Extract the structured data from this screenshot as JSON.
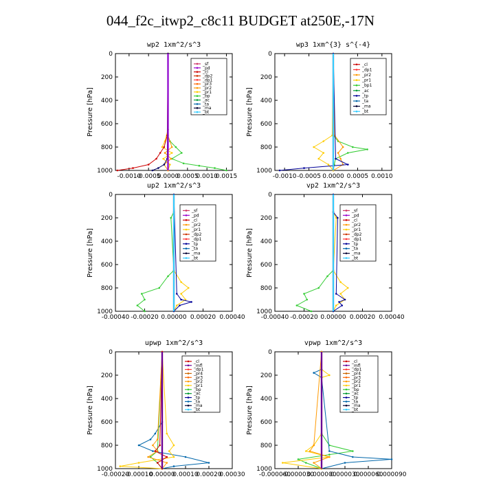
{
  "page": {
    "title": "044_f2c_itwp2_c8c11  BUDGET at250E,-17N"
  },
  "chart_data": [
    {
      "type": "line",
      "title": "wp2  1xm^2/s^3",
      "ylabel": "Pressure [hPa]",
      "xlim": [
        -0.00135,
        0.00165
      ],
      "ylim": [
        1000,
        0
      ],
      "xticks": [
        -0.001,
        -0.0005,
        0.0,
        0.0005,
        0.001,
        0.0015
      ],
      "xtick_labels": [
        "-0.0010",
        "-0.0005",
        "0.0000",
        "0.0005",
        "0.0010",
        "0.0015"
      ],
      "yticks": [
        0,
        200,
        400,
        600,
        800,
        1000
      ],
      "ytick_labels": [
        "0",
        "200",
        "400",
        "600",
        "800",
        "1000"
      ],
      "legend": [
        "_sf",
        "_pd",
        "_cl",
        "_dp2",
        "_dp1",
        "_pr3",
        "_pr2",
        "_pr1",
        "_bp",
        "_ac",
        "_ta",
        "_ma",
        "_bt"
      ],
      "legend_placement": "top-right",
      "series": [
        {
          "name": "_bp",
          "color": "#33cc33",
          "y": [
            0,
            650,
            700,
            750,
            800,
            850,
            900,
            940,
            960,
            980,
            1000
          ],
          "x": [
            0,
            0,
            -2e-05,
            5e-05,
            0.0002,
            0.00035,
            0.0001,
            0.0004,
            0.0008,
            0.0012,
            0.0015
          ]
        },
        {
          "name": "_pr1",
          "color": "#ffcc00",
          "y": [
            0,
            650,
            750,
            800,
            850,
            900,
            950,
            1000
          ],
          "x": [
            0,
            0,
            -8e-05,
            -0.00015,
            0.0001,
            -0.00012,
            5e-05,
            0
          ]
        },
        {
          "name": "_pr2",
          "color": "#ff9900",
          "y": [
            0,
            700,
            800,
            850,
            900,
            950,
            1000
          ],
          "x": [
            0,
            0,
            0.0001,
            -8e-05,
            8e-05,
            -0.0001,
            0
          ]
        },
        {
          "name": "_dp2",
          "color": "#cc0000",
          "y": [
            0,
            700,
            800,
            850,
            900,
            950,
            980,
            1000
          ],
          "x": [
            0,
            -2e-05,
            -0.0001,
            -0.0002,
            -0.0003,
            -0.0005,
            -0.0009,
            -0.0013
          ]
        },
        {
          "name": "_ta",
          "color": "#000066",
          "y": [
            0,
            900,
            950,
            980,
            1000
          ],
          "x": [
            0,
            -2e-05,
            -0.0001,
            -0.00025,
            -0.0004
          ]
        },
        {
          "name": "_bt",
          "color": "#33ccff",
          "y": [
            0,
            1000
          ],
          "x": [
            0,
            0
          ]
        },
        {
          "name": "_pd",
          "color": "#9900cc",
          "y": [
            0,
            1000
          ],
          "x": [
            0,
            0
          ]
        }
      ]
    },
    {
      "type": "line",
      "title": "wp3  1xm^{3} s^{-4}",
      "ylabel": "Pressure [hPa]",
      "xlim": [
        -0.0012,
        0.0012
      ],
      "ylim": [
        1000,
        0
      ],
      "xticks": [
        -0.001,
        -0.0005,
        0.0,
        0.0005,
        0.001
      ],
      "xtick_labels": [
        "-0.0010",
        "-0.0005",
        "0.0000",
        "0.0005",
        "0.0010"
      ],
      "yticks": [
        0,
        200,
        400,
        600,
        800,
        1000
      ],
      "ytick_labels": [
        "0",
        "200",
        "400",
        "600",
        "800",
        "1000"
      ],
      "legend": [
        "_cl",
        "_dp1",
        "_pr2",
        "_pr1",
        "_bp1",
        "_ac",
        "_tp",
        "_ta",
        "_ma",
        "_bt"
      ],
      "legend_placement": "top-right",
      "series": [
        {
          "name": "_ac",
          "color": "#33cc33",
          "y": [
            0,
            700,
            750,
            800,
            820,
            850,
            900,
            950,
            1000
          ],
          "x": [
            0,
            0,
            0.0001,
            0.0004,
            0.0007,
            0.0003,
            5e-05,
            2e-05,
            0
          ]
        },
        {
          "name": "_pr1",
          "color": "#ffcc00",
          "y": [
            0,
            700,
            750,
            800,
            850,
            900,
            950,
            1000
          ],
          "x": [
            0,
            -2e-05,
            -0.0002,
            -0.0004,
            -0.0002,
            -0.0003,
            -0.0001,
            0
          ]
        },
        {
          "name": "_pr2",
          "color": "#ff9900",
          "y": [
            0,
            700,
            800,
            850,
            900,
            950,
            1000
          ],
          "x": [
            0,
            3e-05,
            0.0002,
            0.0001,
            0.00015,
            0.0002,
            0
          ]
        },
        {
          "name": "_tp",
          "color": "#000099",
          "y": [
            0,
            900,
            950,
            980,
            1000
          ],
          "x": [
            0,
            5e-05,
            0.0003,
            -0.0006,
            -0.0011
          ]
        },
        {
          "name": "_cl",
          "color": "#cc0000",
          "y": [
            0,
            1000
          ],
          "x": [
            0,
            0
          ]
        },
        {
          "name": "_bt",
          "color": "#33ccff",
          "y": [
            0,
            1000
          ],
          "x": [
            0,
            0
          ]
        }
      ]
    },
    {
      "type": "line",
      "title": "up2  1xm^2/s^3",
      "ylabel": "Pressure [hPa]",
      "xlim": [
        -0.0004,
        0.0004
      ],
      "ylim": [
        1000,
        0
      ],
      "xticks": [
        -0.0004,
        -0.0002,
        0.0,
        0.0002,
        0.0004
      ],
      "xtick_labels": [
        "-0.00040",
        "-0.00020",
        "0.00000",
        "0.00020",
        "0.00040"
      ],
      "yticks": [
        0,
        200,
        400,
        600,
        800,
        1000
      ],
      "ytick_labels": [
        "0",
        "200",
        "400",
        "600",
        "800",
        "1000"
      ],
      "legend": [
        "_sf",
        "_pd",
        "_cl",
        "_pr2",
        "_pr1",
        "_dp2",
        "_dp1",
        "_tp",
        "_ta",
        "_ma",
        "_bt"
      ],
      "legend_placement": "top-right",
      "series": [
        {
          "name": "_dp1",
          "color": "#33cc33",
          "y": [
            0,
            150,
            200,
            650,
            700,
            800,
            850,
            900,
            950,
            1000
          ],
          "x": [
            0,
            0,
            -2e-05,
            0,
            -4e-05,
            -0.0001,
            -0.00022,
            -0.0002,
            -0.00025,
            -0.0002
          ]
        },
        {
          "name": "_pr1",
          "color": "#ffcc00",
          "y": [
            0,
            650,
            750,
            800,
            850,
            900,
            950,
            1000
          ],
          "x": [
            0,
            0,
            5e-05,
            0.0001,
            5e-05,
            8e-05,
            2e-05,
            0
          ]
        },
        {
          "name": "_tp",
          "color": "#000099",
          "y": [
            0,
            850,
            900,
            920,
            950,
            1000
          ],
          "x": [
            0,
            2e-05,
            5e-05,
            0.00012,
            4e-05,
            0
          ]
        },
        {
          "name": "_cl",
          "color": "#cc0000",
          "y": [
            0,
            1000
          ],
          "x": [
            0,
            0
          ]
        },
        {
          "name": "_bt",
          "color": "#33ccff",
          "y": [
            0,
            1000
          ],
          "x": [
            0,
            0
          ]
        }
      ]
    },
    {
      "type": "line",
      "title": "vp2  1xm^2/s^3",
      "ylabel": "Pressure [hPa]",
      "xlim": [
        -0.0004,
        0.0004
      ],
      "ylim": [
        1000,
        0
      ],
      "xticks": [
        -0.0004,
        -0.0002,
        0.0,
        0.0002,
        0.0004
      ],
      "xtick_labels": [
        "-0.00040",
        "-0.00020",
        "0.00000",
        "0.00020",
        "0.00040"
      ],
      "yticks": [
        0,
        200,
        400,
        600,
        800,
        1000
      ],
      "ytick_labels": [
        "0",
        "200",
        "400",
        "600",
        "800",
        "1000"
      ],
      "legend": [
        "_sf",
        "_pd",
        "_cl",
        "_pr2",
        "_pr1",
        "_dp2",
        "_dp1",
        "_tp",
        "_ta",
        "_ma",
        "_bt"
      ],
      "legend_placement": "top-right",
      "series": [
        {
          "name": "_dp1",
          "color": "#33cc33",
          "y": [
            0,
            650,
            700,
            800,
            850,
            900,
            950,
            1000
          ],
          "x": [
            0,
            0,
            -4e-05,
            -0.0001,
            -0.0002,
            -0.00018,
            -0.00025,
            -0.00015
          ]
        },
        {
          "name": "_pr1",
          "color": "#ffcc00",
          "y": [
            0,
            150,
            200,
            650,
            750,
            800,
            850,
            900,
            950,
            1000
          ],
          "x": [
            0,
            0,
            2e-05,
            0,
            5e-05,
            0.0001,
            5e-05,
            8e-05,
            2e-05,
            0
          ]
        },
        {
          "name": "_tp",
          "color": "#000099",
          "y": [
            0,
            150,
            200,
            850,
            900,
            920,
            950,
            1000
          ],
          "x": [
            0,
            0,
            3e-05,
            2e-05,
            8e-05,
            4e-05,
            6e-05,
            0
          ]
        },
        {
          "name": "_cl",
          "color": "#cc0000",
          "y": [
            0,
            1000
          ],
          "x": [
            0,
            0
          ]
        },
        {
          "name": "_bt",
          "color": "#33ccff",
          "y": [
            0,
            1000
          ],
          "x": [
            0,
            0
          ]
        }
      ]
    },
    {
      "type": "line",
      "title": "upwp  1xm^2/s^3",
      "ylabel": "Pressure [hPa]",
      "xlim": [
        -0.0002,
        0.0003
      ],
      "ylim": [
        1000,
        0
      ],
      "xticks": [
        -0.0002,
        -0.0001,
        0.0,
        0.0001,
        0.0002,
        0.0003
      ],
      "xtick_labels": [
        "-0.00020",
        "-0.00010",
        "0.00000",
        "0.00010",
        "0.00020",
        "0.00030"
      ],
      "yticks": [
        0,
        200,
        400,
        600,
        800,
        1000
      ],
      "ytick_labels": [
        "0",
        "200",
        "400",
        "600",
        "800",
        "1000"
      ],
      "legend": [
        "_cl",
        "_mfl",
        "_dp1",
        "_pr4",
        "_pr3",
        "_pr2",
        "_pr1",
        "_bp",
        "_ac",
        "_tp",
        "_ta",
        "_ma",
        "_bt"
      ],
      "legend_placement": "top-right",
      "series": [
        {
          "name": "_ta",
          "color": "#0066aa",
          "y": [
            0,
            600,
            700,
            750,
            800,
            850,
            900,
            950,
            980,
            1000
          ],
          "x": [
            0,
            0,
            -3e-05,
            -5e-05,
            -0.0001,
            -4e-05,
            0.0001,
            0.0002,
            5e-05,
            0
          ]
        },
        {
          "name": "_pr1",
          "color": "#ffcc00",
          "y": [
            0,
            700,
            800,
            850,
            900,
            950,
            980,
            1000
          ],
          "x": [
            0,
            2e-05,
            5e-05,
            3e-05,
            5e-05,
            -0.0001,
            -0.00018,
            0
          ]
        },
        {
          "name": "_bp",
          "color": "#33cc33",
          "y": [
            0,
            850,
            900,
            950,
            1000
          ],
          "x": [
            0,
            -2e-05,
            -5e-05,
            -2e-05,
            0
          ]
        },
        {
          "name": "_pr2",
          "color": "#ff9900",
          "y": [
            0,
            750,
            800,
            850,
            900,
            950,
            1000
          ],
          "x": [
            0,
            -2e-05,
            -4e-05,
            -2e-05,
            -6e-05,
            2e-05,
            0
          ]
        },
        {
          "name": "_dp1",
          "color": "#cc0000",
          "y": [
            0,
            800,
            850,
            900,
            950,
            1000
          ],
          "x": [
            0,
            -1e-05,
            -3e-05,
            2e-05,
            -2e-05,
            0
          ]
        },
        {
          "name": "_cl",
          "color": "#cc0000",
          "y": [
            0,
            1000
          ],
          "x": [
            0,
            0
          ]
        },
        {
          "name": "_mfl",
          "color": "#660099",
          "y": [
            0,
            1000
          ],
          "x": [
            0,
            0
          ]
        }
      ]
    },
    {
      "type": "line",
      "title": "vpwp  1xm^2/s^3",
      "ylabel": "Pressure [hPa]",
      "xlim": [
        -6e-05,
        9e-05
      ],
      "ylim": [
        1000,
        0
      ],
      "xticks": [
        -6e-05,
        -3e-05,
        0.0,
        3e-05,
        6e-05,
        9e-05
      ],
      "xtick_labels": [
        "-0.000060",
        "-0.000030",
        "0.000000",
        "0.000030",
        "0.000060",
        "0.000090"
      ],
      "yticks": [
        0,
        200,
        400,
        600,
        800,
        1000
      ],
      "ytick_labels": [
        "0",
        "200",
        "400",
        "600",
        "800",
        "1000"
      ],
      "legend": [
        "_cl",
        "_mfl",
        "_dp1",
        "_pr4",
        "_pr3",
        "_pr2",
        "_pr1",
        "_bp",
        "_ac",
        "_tp",
        "_ta",
        "_ma",
        "_bt"
      ],
      "legend_placement": "top-right",
      "series": [
        {
          "name": "_bp",
          "color": "#33cc33",
          "y": [
            0,
            700,
            800,
            850,
            880,
            920,
            950,
            1000
          ],
          "x": [
            0,
            0,
            1e-05,
            4e-05,
            1e-05,
            -3e-05,
            -2e-05,
            0
          ]
        },
        {
          "name": "_pr1",
          "color": "#ffcc00",
          "y": [
            0,
            150,
            200,
            220,
            700,
            800,
            850,
            900,
            950,
            1000
          ],
          "x": [
            0,
            0,
            1e-05,
            0,
            0,
            -1e-05,
            -2e-05,
            1e-05,
            -5e-05,
            0
          ]
        },
        {
          "name": "_ta",
          "color": "#0066aa",
          "y": [
            0,
            150,
            180,
            220,
            850,
            900,
            920,
            950,
            1000
          ],
          "x": [
            0,
            0,
            -1e-05,
            0,
            1e-05,
            4e-05,
            9e-05,
            3e-05,
            0
          ]
        },
        {
          "name": "_pr2",
          "color": "#ff9900",
          "y": [
            0,
            800,
            850,
            900,
            950,
            1000
          ],
          "x": [
            0,
            -1e-05,
            -1.5e-05,
            1e-05,
            -1e-05,
            0
          ]
        },
        {
          "name": "_cl",
          "color": "#cc0000",
          "y": [
            0,
            1000
          ],
          "x": [
            0,
            0
          ]
        },
        {
          "name": "_mfl",
          "color": "#660099",
          "y": [
            0,
            1000
          ],
          "x": [
            0,
            0
          ]
        }
      ]
    }
  ],
  "legend_colors": {
    "_sf": "#cc3366",
    "_pd": "#9900cc",
    "_cl": "#cc0000",
    "_mfl": "#660099",
    "_dp2": "#cc3300",
    "_dp1": "#ff3333",
    "_pr4": "#cc6600",
    "_pr3": "#ff6600",
    "_pr2": "#ff9900",
    "_pr1": "#ffcc00",
    "_bp": "#33cc33",
    "_bp1": "#33cc33",
    "_ac": "#009933",
    "_tp": "#000099",
    "_ta": "#0066aa",
    "_ma": "#000033",
    "_bt": "#33ccff"
  }
}
